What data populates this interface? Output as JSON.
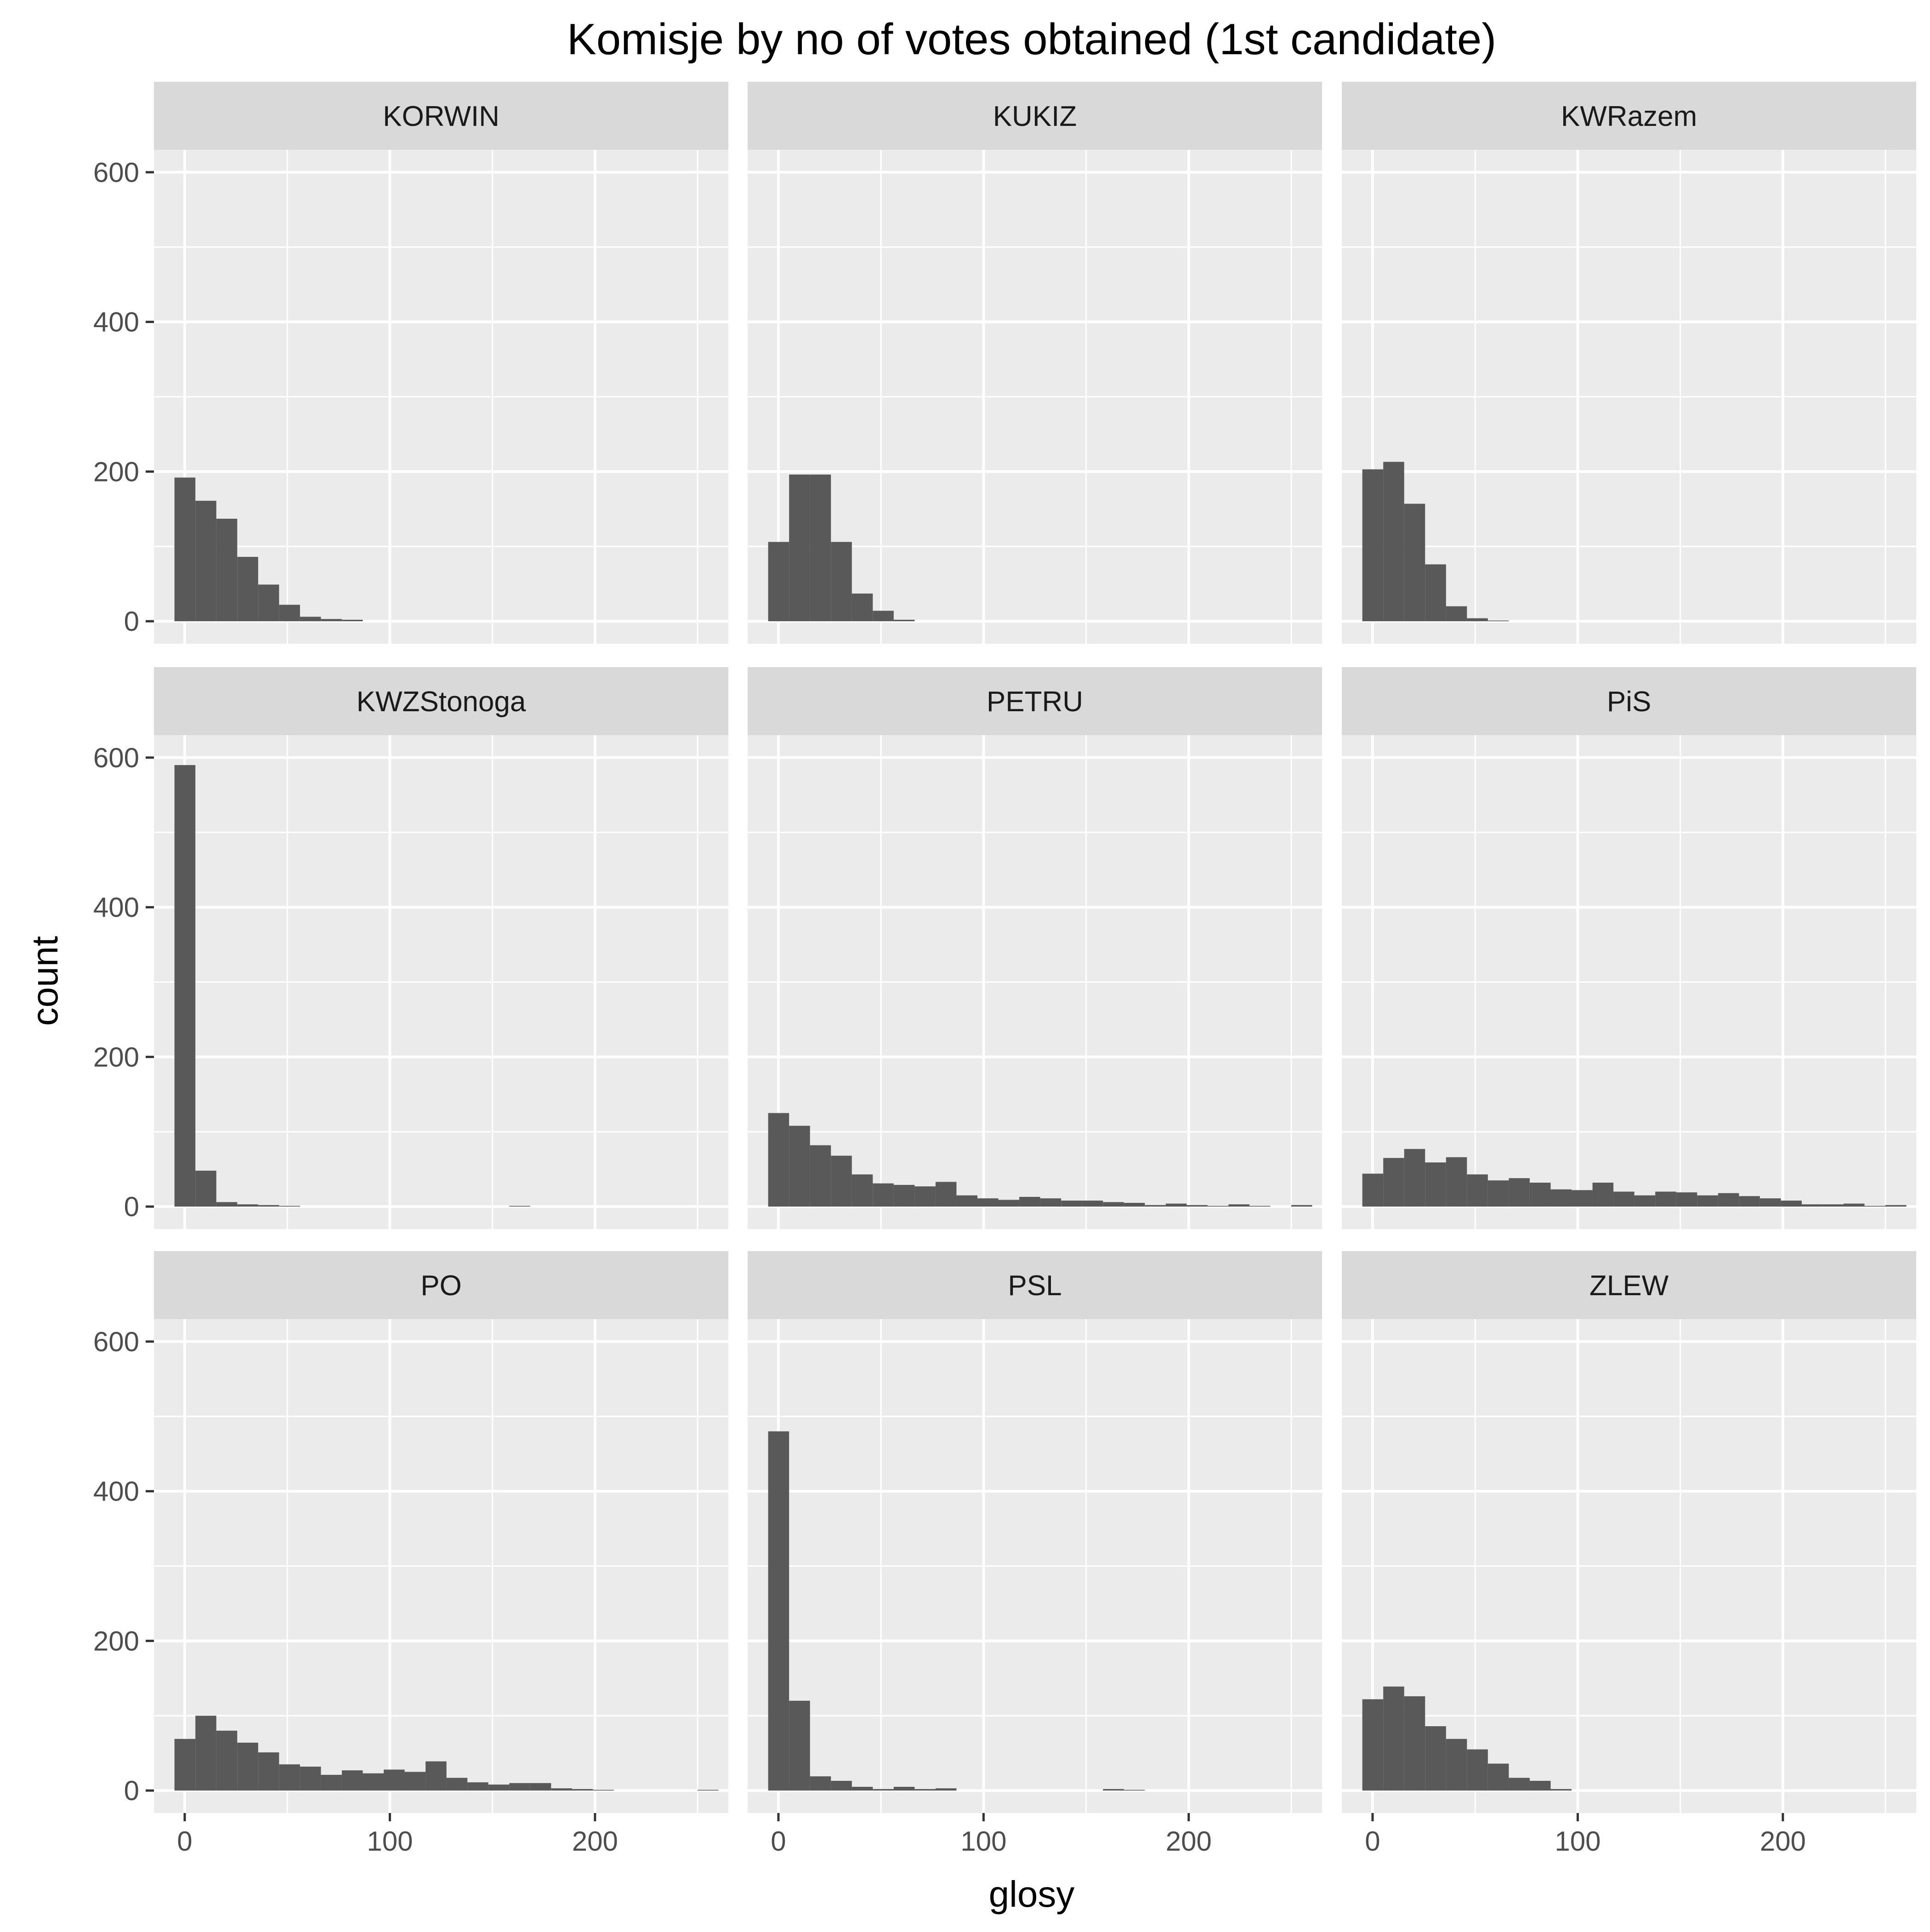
{
  "chart_data": {
    "type": "histogram",
    "layout": "facet_wrap 3x3",
    "title": "Komisje by no of votes obtained (1st candidate)",
    "xlabel": "glosy",
    "ylabel": "count",
    "xlim": [
      -15,
      265
    ],
    "ylim": [
      -30,
      630
    ],
    "x_ticks": [
      0,
      100,
      200
    ],
    "y_ticks": [
      0,
      200,
      400,
      600
    ],
    "bin_width": 10.2,
    "bin_start": -5,
    "grid": true,
    "legend": "none",
    "bar_color": "#595959",
    "panel_background": "#ebebeb",
    "strip_background": "#d9d9d9",
    "panels": [
      {
        "name": "KORWIN",
        "counts": [
          192,
          161,
          137,
          86,
          49,
          22,
          6,
          3,
          2,
          0,
          0,
          0,
          0,
          0,
          0,
          0,
          0,
          0,
          0,
          0,
          0,
          0,
          0,
          0,
          0,
          0
        ]
      },
      {
        "name": "KUKIZ",
        "counts": [
          106,
          196,
          196,
          106,
          37,
          14,
          2,
          0,
          0,
          0,
          0,
          0,
          0,
          0,
          0,
          0,
          0,
          0,
          0,
          0,
          0,
          0,
          0,
          0,
          0,
          0
        ]
      },
      {
        "name": "KWRazem",
        "counts": [
          203,
          213,
          157,
          76,
          20,
          4,
          1,
          0,
          0,
          0,
          0,
          0,
          0,
          0,
          0,
          0,
          0,
          0,
          0,
          0,
          0,
          0,
          0,
          0,
          0,
          0
        ]
      },
      {
        "name": "KWZStonoga",
        "counts": [
          590,
          48,
          6,
          3,
          2,
          1,
          0,
          0,
          0,
          0,
          0,
          0,
          0,
          0,
          0,
          0,
          1,
          0,
          0,
          0,
          0,
          0,
          0,
          0,
          0,
          0
        ]
      },
      {
        "name": "PETRU",
        "counts": [
          125,
          108,
          82,
          68,
          43,
          31,
          29,
          27,
          33,
          15,
          11,
          9,
          13,
          11,
          8,
          8,
          6,
          5,
          2,
          4,
          2,
          1,
          3,
          1,
          0,
          2
        ]
      },
      {
        "name": "PiS",
        "counts": [
          44,
          65,
          77,
          59,
          66,
          43,
          35,
          38,
          32,
          23,
          22,
          32,
          20,
          15,
          20,
          19,
          15,
          18,
          14,
          11,
          8,
          3,
          3,
          4,
          1,
          2
        ]
      },
      {
        "name": "PO",
        "counts": [
          69,
          100,
          80,
          64,
          51,
          35,
          32,
          21,
          27,
          23,
          28,
          25,
          39,
          17,
          11,
          8,
          10,
          10,
          3,
          2,
          1,
          0,
          0,
          0,
          0,
          1
        ]
      },
      {
        "name": "PSL",
        "counts": [
          480,
          120,
          19,
          13,
          5,
          2,
          5,
          2,
          3,
          0,
          0,
          0,
          0,
          0,
          0,
          0,
          2,
          1,
          0,
          0,
          0,
          0,
          0,
          0,
          0,
          0
        ]
      },
      {
        "name": "ZLEW",
        "counts": [
          122,
          139,
          126,
          86,
          69,
          55,
          36,
          17,
          13,
          2,
          0,
          0,
          0,
          0,
          0,
          0,
          0,
          0,
          0,
          0,
          0,
          0,
          0,
          0,
          0,
          0
        ]
      }
    ]
  }
}
